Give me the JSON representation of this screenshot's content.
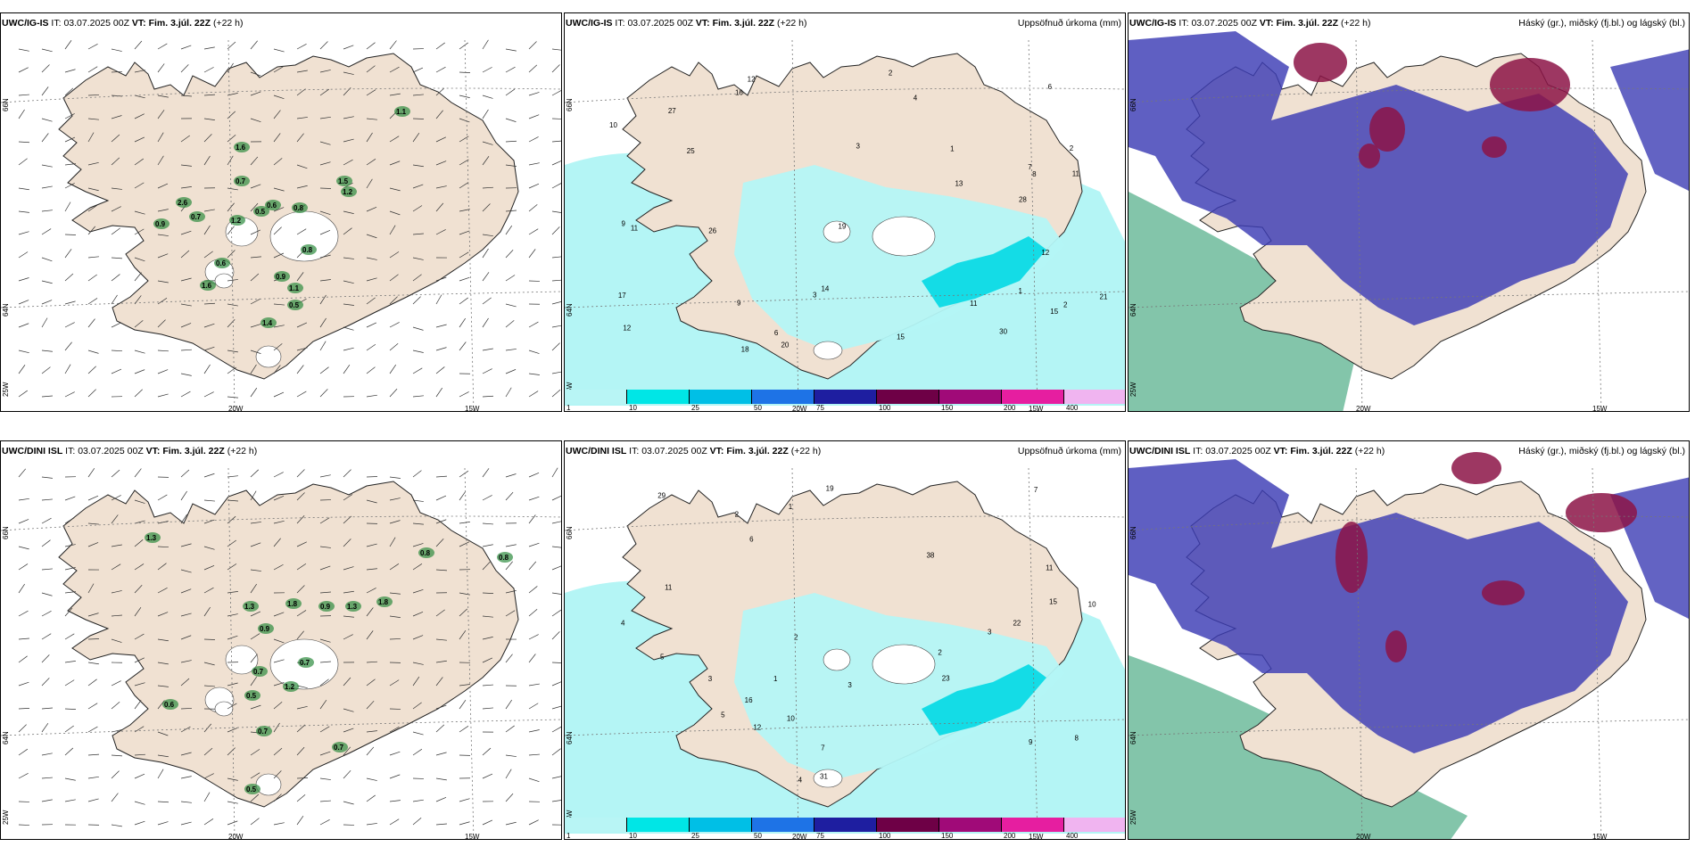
{
  "rows": [
    {
      "model": "UWC/IG-IS",
      "it_label": "IT:",
      "it_value": "03.07.2025 00Z",
      "vt_label": "VT:",
      "vt_value": "Fim. 3.júl. 22Z",
      "lead": "(+22 h)",
      "wind_labels": [
        "1.6",
        "0.7",
        "2.6",
        "0.7",
        "0.9",
        "1.2",
        "0.5",
        "0.6",
        "0.8",
        "0.8",
        "0.6",
        "1.6",
        "0.9",
        "1.1",
        "0.5",
        "1.4",
        "1.5",
        "1.2",
        "1.1"
      ],
      "precip_values": [
        "1",
        "2",
        "2",
        "3",
        "12",
        "12",
        "7",
        "9",
        "6",
        "25",
        "11",
        "10",
        "28",
        "20",
        "17",
        "27",
        "15",
        "16",
        "14",
        "8",
        "9",
        "11",
        "15",
        "13",
        "6",
        "3",
        "2",
        "4",
        "1",
        "21",
        "26",
        "11",
        "18",
        "19",
        "12",
        "30"
      ],
      "axes": {
        "lon_left": "20W",
        "lon_right": "15W",
        "lat_top": "66N",
        "lat_mid": "64N",
        "lat_bot": "25W"
      }
    },
    {
      "model": "UWC/DINI ISL",
      "it_label": "IT:",
      "it_value": "03.07.2025 00Z",
      "vt_label": "VT:",
      "vt_value": "Fim. 3.júl. 22Z",
      "lead": "(+22 h)",
      "wind_labels": [
        "1.3",
        "0.8",
        "0.8",
        "1.3",
        "1.8",
        "0.9",
        "1.8",
        "1.3",
        "0.9",
        "0.7",
        "0.7",
        "0.5",
        "1.2",
        "0.6",
        "0.7",
        "0.7",
        "0.5"
      ],
      "precip_values": [
        "1",
        "2",
        "3",
        "2",
        "3",
        "11",
        "12",
        "10",
        "38",
        "7",
        "5",
        "9",
        "29",
        "31",
        "22",
        "23",
        "16",
        "15",
        "19",
        "11",
        "4",
        "3",
        "6",
        "2",
        "10",
        "5",
        "4",
        "1",
        "8",
        "7"
      ],
      "axes": {
        "lon_left": "20W",
        "lon_right": "15W",
        "lat_top": "66N",
        "lat_mid": "64N",
        "lat_bot": "25W"
      }
    }
  ],
  "precip_title": "Uppsöfnuð úrkoma (mm)",
  "cloud_title": "Háský (gr.), miðský (fj.bl.) og lágský (bl.)",
  "colorbar": {
    "ticks": [
      "1",
      "10",
      "25",
      "50",
      "75",
      "100",
      "150",
      "200",
      "400"
    ],
    "colors": [
      "#b8f5f5",
      "#00e6e6",
      "#00bfe6",
      "#1e73e6",
      "#1e1ea0",
      "#6e0046",
      "#a00a78",
      "#e61ea0",
      "#f0b4f0"
    ]
  },
  "colors": {
    "land": "#f0e1d2",
    "precip_light": "#b4f5f5",
    "precip_med": "#14dce6",
    "cloud_high": "#8c1446",
    "cloud_mid": "#3c3cb4",
    "cloud_low": "#1e9664"
  }
}
